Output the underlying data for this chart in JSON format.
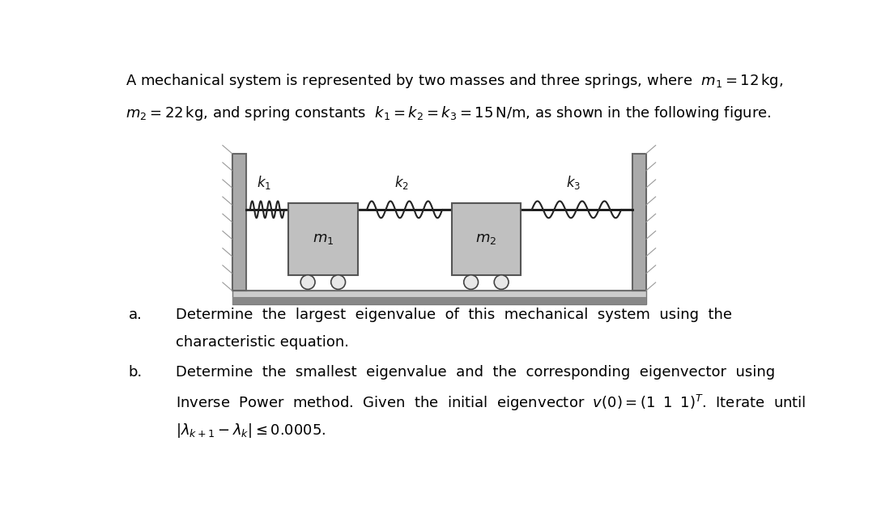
{
  "bg_color": "#ffffff",
  "text_color": "#000000",
  "fig_width": 10.83,
  "fig_height": 6.24,
  "dpi": 100,
  "line1": "A mechanical system is represented by two masses and three springs, where  $m_1=12\\,\\mathrm{kg}$,",
  "line2": "$m_2=22\\,\\mathrm{kg}$, and spring constants  $k_1=k_2=k_3=15\\,\\mathrm{N/m}$, as shown in the following figure.",
  "part_a_label": "a.",
  "part_a_line1": "Determine  the  largest  eigenvalue  of  this  mechanical  system  using  the",
  "part_a_line2": "characteristic equation.",
  "part_b_label": "b.",
  "part_b_line1": "Determine  the  smallest  eigenvalue  and  the  corresponding  eigenvector  using",
  "part_b_line2": "Inverse  Power  method.  Given  the  initial  eigenvector  $v(0)=(1\\;\\;1\\;\\;1)^T$.  Iterate  until",
  "part_b_line3": "$|\\lambda_{k+1}-\\lambda_k|\\leq 0.0005$.",
  "body_fontsize": 13.0,
  "wall_color": "#aaaaaa",
  "wall_edge": "#666666",
  "mass_color": "#c0c0c0",
  "mass_edge": "#555555",
  "spring_color": "#222222",
  "floor_color_top": "#cccccc",
  "floor_color_bot": "#888888",
  "wheel_face": "#e8e8e8",
  "wheel_edge": "#444444",
  "k_label_color": "#111111"
}
